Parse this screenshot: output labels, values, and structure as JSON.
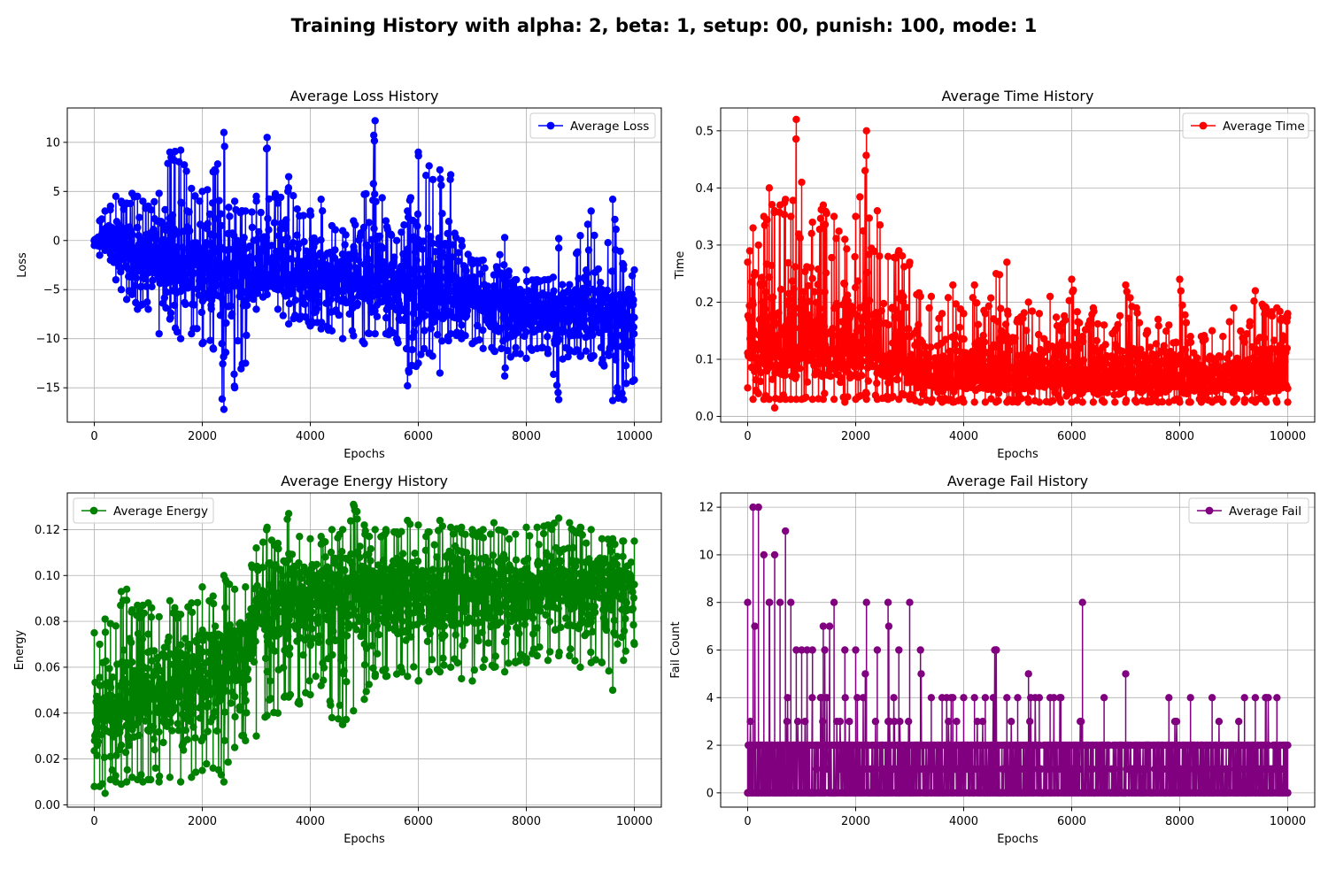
{
  "figure_title": "Training History with alpha: 2, beta: 1, setup: 00, punish: 100, mode: 1",
  "chart_data": [
    {
      "type": "line",
      "title": "Average Loss History",
      "xlabel": "Epochs",
      "ylabel": "Loss",
      "legend": "top-right",
      "grid": true,
      "markers": true,
      "xlim": [
        -500,
        10500
      ],
      "ylim": [
        -18.5,
        13.5
      ],
      "xticks": [
        0,
        2000,
        4000,
        6000,
        8000,
        10000
      ],
      "yticks": [
        -15,
        -10,
        -5,
        0,
        5,
        10
      ],
      "yticks_labels": [
        "−15",
        "−10",
        "−5",
        "0",
        "5",
        "10"
      ],
      "series": [
        {
          "name": "Average Loss",
          "color": "#0000ff",
          "x": [
            0,
            100,
            200,
            300,
            400,
            500,
            600,
            700,
            800,
            900,
            1000,
            1200,
            1400,
            1600,
            1800,
            2000,
            2200,
            2400,
            2600,
            2800,
            3000,
            3200,
            3400,
            3600,
            3800,
            4000,
            4200,
            4400,
            4600,
            4800,
            5000,
            5200,
            5400,
            5600,
            5800,
            6000,
            6200,
            6400,
            6600,
            6800,
            7000,
            7200,
            7400,
            7600,
            7800,
            8000,
            8200,
            8400,
            8600,
            8800,
            9000,
            9200,
            9400,
            9600,
            9800,
            10000
          ],
          "upper": [
            0,
            2,
            3,
            3.5,
            4.5,
            4,
            3.8,
            4.8,
            4.5,
            4,
            3.5,
            4.8,
            9,
            9.2,
            5.3,
            5,
            7,
            11,
            4,
            3,
            4.5,
            10.5,
            3.8,
            6.5,
            2.5,
            3,
            4.2,
            1.5,
            1,
            2,
            4.7,
            12.2,
            2,
            0,
            3,
            9,
            7.6,
            7.2,
            6.7,
            0,
            -2,
            -2,
            -3.5,
            0.3,
            -4,
            -3,
            -4,
            -4,
            0.2,
            -4.5,
            0.5,
            3,
            -5,
            4.2,
            -2.5,
            -3
          ],
          "lower": [
            -0.5,
            -1.5,
            -1,
            -2,
            -4,
            -5,
            -6,
            -5.5,
            -7,
            -6.5,
            -7,
            -9.5,
            -8,
            -10,
            -9.5,
            -10.5,
            -11,
            -17.2,
            -15,
            -12.5,
            -7,
            -5.5,
            -7,
            -8.5,
            -8,
            -8.7,
            -9,
            -9.2,
            -10,
            -9.7,
            -10.5,
            -9.5,
            -9.5,
            -10,
            -14.8,
            -12.5,
            -11.5,
            -13.5,
            -9.5,
            -10,
            -10.5,
            -11,
            -11.2,
            -13.8,
            -11.5,
            -12,
            -11,
            -11.5,
            -16.2,
            -11.3,
            -11.8,
            -12,
            -12.5,
            -16.3,
            -16.2,
            -14.2
          ],
          "mean": [
            0,
            0,
            0,
            -0.5,
            -0.5,
            -1,
            -1,
            -1.2,
            -1.5,
            -1.5,
            -1.6,
            -2,
            -2.2,
            -2.3,
            -2.5,
            -2.6,
            -2.8,
            -3,
            -3,
            -3.2,
            -3.3,
            -3.4,
            -3.5,
            -3.6,
            -3.7,
            -3.8,
            -3.9,
            -4,
            -4.1,
            -4.2,
            -4.3,
            -4.5,
            -4.6,
            -4.8,
            -5,
            -5.1,
            -5.3,
            -5.5,
            -5.6,
            -5.8,
            -6,
            -6.1,
            -6.3,
            -6.5,
            -6.6,
            -6.8,
            -6.9,
            -7,
            -7.1,
            -7.2,
            -7.3,
            -7.4,
            -7.5,
            -7.6,
            -7.8,
            -8
          ]
        }
      ]
    },
    {
      "type": "line",
      "title": "Average Time History",
      "xlabel": "Epochs",
      "ylabel": "Time",
      "legend": "top-right",
      "grid": true,
      "markers": true,
      "xlim": [
        -500,
        10500
      ],
      "ylim": [
        -0.01,
        0.54
      ],
      "xticks": [
        0,
        2000,
        4000,
        6000,
        8000,
        10000
      ],
      "yticks": [
        0.0,
        0.1,
        0.2,
        0.3,
        0.4,
        0.5
      ],
      "yticks_labels": [
        "0.0",
        "0.1",
        "0.2",
        "0.3",
        "0.4",
        "0.5"
      ],
      "series": [
        {
          "name": "Average Time",
          "color": "#ff0000",
          "x": [
            0,
            100,
            200,
            300,
            400,
            500,
            600,
            700,
            800,
            900,
            1000,
            1200,
            1400,
            1600,
            1800,
            2000,
            2200,
            2400,
            2600,
            2800,
            3000,
            3200,
            3400,
            3600,
            3800,
            4000,
            4200,
            4400,
            4600,
            4800,
            5000,
            5200,
            5400,
            5600,
            5800,
            6000,
            6200,
            6400,
            6600,
            6800,
            7000,
            7200,
            7400,
            7600,
            7800,
            8000,
            8200,
            8400,
            8600,
            8800,
            9000,
            9200,
            9400,
            9600,
            9800,
            10000
          ],
          "upper": [
            0.27,
            0.33,
            0.3,
            0.35,
            0.4,
            0.36,
            0.37,
            0.38,
            0.35,
            0.52,
            0.41,
            0.34,
            0.37,
            0.35,
            0.31,
            0.35,
            0.5,
            0.36,
            0.28,
            0.29,
            0.27,
            0.21,
            0.21,
            0.18,
            0.23,
            0.18,
            0.23,
            0.18,
            0.25,
            0.27,
            0.17,
            0.2,
            0.18,
            0.21,
            0.15,
            0.24,
            0.14,
            0.19,
            0.16,
            0.15,
            0.23,
            0.19,
            0.15,
            0.17,
            0.16,
            0.24,
            0.14,
            0.14,
            0.15,
            0.14,
            0.19,
            0.13,
            0.22,
            0.19,
            0.19,
            0.18
          ],
          "lower": [
            0.05,
            0.03,
            0.04,
            0.03,
            0.03,
            0.015,
            0.03,
            0.03,
            0.03,
            0.03,
            0.03,
            0.03,
            0.03,
            0.03,
            0.025,
            0.03,
            0.03,
            0.03,
            0.03,
            0.03,
            0.03,
            0.025,
            0.025,
            0.025,
            0.025,
            0.025,
            0.025,
            0.025,
            0.025,
            0.025,
            0.025,
            0.025,
            0.025,
            0.025,
            0.025,
            0.025,
            0.025,
            0.025,
            0.025,
            0.025,
            0.025,
            0.025,
            0.025,
            0.025,
            0.025,
            0.025,
            0.025,
            0.025,
            0.025,
            0.025,
            0.025,
            0.025,
            0.025,
            0.025,
            0.025,
            0.025
          ],
          "mean": [
            0.12,
            0.13,
            0.13,
            0.12,
            0.12,
            0.12,
            0.12,
            0.12,
            0.12,
            0.12,
            0.12,
            0.12,
            0.12,
            0.12,
            0.12,
            0.12,
            0.12,
            0.11,
            0.11,
            0.11,
            0.1,
            0.07,
            0.07,
            0.07,
            0.07,
            0.07,
            0.07,
            0.07,
            0.07,
            0.07,
            0.07,
            0.07,
            0.07,
            0.065,
            0.065,
            0.065,
            0.065,
            0.065,
            0.065,
            0.065,
            0.065,
            0.065,
            0.065,
            0.065,
            0.065,
            0.065,
            0.065,
            0.065,
            0.065,
            0.065,
            0.065,
            0.065,
            0.065,
            0.065,
            0.065,
            0.065
          ]
        }
      ]
    },
    {
      "type": "line",
      "title": "Average Energy History",
      "xlabel": "Epochs",
      "ylabel": "Energy",
      "legend": "top-left",
      "grid": true,
      "markers": true,
      "xlim": [
        -500,
        10500
      ],
      "ylim": [
        -0.001,
        0.136
      ],
      "xticks": [
        0,
        2000,
        4000,
        6000,
        8000,
        10000
      ],
      "yticks": [
        0.0,
        0.02,
        0.04,
        0.06,
        0.08,
        0.1,
        0.12
      ],
      "yticks_labels": [
        "0.00",
        "0.02",
        "0.04",
        "0.06",
        "0.08",
        "0.10",
        "0.12"
      ],
      "series": [
        {
          "name": "Average Energy",
          "color": "#008000",
          "x": [
            0,
            100,
            200,
            300,
            400,
            500,
            600,
            700,
            800,
            900,
            1000,
            1200,
            1400,
            1600,
            1800,
            2000,
            2200,
            2400,
            2600,
            2800,
            3000,
            3200,
            3400,
            3600,
            3800,
            4000,
            4200,
            4400,
            4600,
            4800,
            5000,
            5200,
            5400,
            5600,
            5800,
            6000,
            6200,
            6400,
            6600,
            6800,
            7000,
            7200,
            7400,
            7600,
            7800,
            8000,
            8200,
            8400,
            8600,
            8800,
            9000,
            9200,
            9400,
            9600,
            9800,
            10000
          ],
          "upper": [
            0.075,
            0.07,
            0.081,
            0.079,
            0.078,
            0.093,
            0.094,
            0.085,
            0.087,
            0.087,
            0.088,
            0.082,
            0.089,
            0.083,
            0.088,
            0.095,
            0.091,
            0.1,
            0.094,
            0.095,
            0.112,
            0.121,
            0.114,
            0.127,
            0.117,
            0.116,
            0.117,
            0.12,
            0.12,
            0.131,
            0.122,
            0.12,
            0.12,
            0.119,
            0.124,
            0.122,
            0.119,
            0.124,
            0.121,
            0.121,
            0.12,
            0.12,
            0.123,
            0.119,
            0.118,
            0.121,
            0.121,
            0.122,
            0.125,
            0.123,
            0.121,
            0.12,
            0.116,
            0.116,
            0.115,
            0.115
          ],
          "lower": [
            0.008,
            0.008,
            0.005,
            0.011,
            0.01,
            0.009,
            0.01,
            0.012,
            0.011,
            0.01,
            0.011,
            0.01,
            0.012,
            0.01,
            0.012,
            0.015,
            0.016,
            0.01,
            0.025,
            0.028,
            0.03,
            0.039,
            0.04,
            0.047,
            0.044,
            0.048,
            0.052,
            0.038,
            0.035,
            0.041,
            0.046,
            0.056,
            0.056,
            0.057,
            0.056,
            0.054,
            0.058,
            0.058,
            0.06,
            0.055,
            0.054,
            0.06,
            0.06,
            0.058,
            0.062,
            0.062,
            0.065,
            0.063,
            0.065,
            0.065,
            0.06,
            0.062,
            0.062,
            0.05,
            0.063,
            0.07
          ],
          "mean": [
            0.04,
            0.04,
            0.041,
            0.042,
            0.043,
            0.044,
            0.045,
            0.046,
            0.047,
            0.048,
            0.049,
            0.05,
            0.052,
            0.054,
            0.056,
            0.058,
            0.06,
            0.062,
            0.064,
            0.066,
            0.085,
            0.088,
            0.089,
            0.09,
            0.09,
            0.091,
            0.091,
            0.092,
            0.092,
            0.092,
            0.093,
            0.093,
            0.093,
            0.094,
            0.094,
            0.094,
            0.094,
            0.094,
            0.095,
            0.095,
            0.095,
            0.095,
            0.095,
            0.095,
            0.095,
            0.096,
            0.096,
            0.096,
            0.096,
            0.096,
            0.096,
            0.096,
            0.096,
            0.096,
            0.096,
            0.096
          ]
        }
      ]
    },
    {
      "type": "line",
      "title": "Average Fail History",
      "xlabel": "Epochs",
      "ylabel": "Fail Count",
      "legend": "top-right",
      "grid": true,
      "markers": true,
      "xlim": [
        -500,
        10500
      ],
      "ylim": [
        -0.6,
        12.6
      ],
      "xticks": [
        0,
        2000,
        4000,
        6000,
        8000,
        10000
      ],
      "yticks": [
        0,
        2,
        4,
        6,
        8,
        10,
        12
      ],
      "yticks_labels": [
        "0",
        "2",
        "4",
        "6",
        "8",
        "10",
        "12"
      ],
      "series": [
        {
          "name": "Average Fail",
          "color": "#800080",
          "x": [
            0,
            100,
            200,
            300,
            400,
            500,
            600,
            700,
            800,
            900,
            1000,
            1200,
            1400,
            1600,
            1800,
            2000,
            2200,
            2400,
            2600,
            2800,
            3000,
            3200,
            3400,
            3600,
            3800,
            4000,
            4200,
            4400,
            4600,
            4800,
            5000,
            5200,
            5400,
            5600,
            5800,
            6000,
            6200,
            6400,
            6600,
            6800,
            7000,
            7200,
            7400,
            7600,
            7800,
            8000,
            8200,
            8400,
            8600,
            8800,
            9000,
            9200,
            9400,
            9600,
            9800,
            10000
          ],
          "upper": [
            8,
            12,
            12,
            10,
            8,
            10,
            8,
            11,
            8,
            6,
            6,
            6,
            7,
            8,
            6,
            6,
            8,
            6,
            8,
            6,
            8,
            6,
            4,
            4,
            4,
            4,
            4,
            4,
            6,
            4,
            4,
            5,
            4,
            4,
            4,
            2,
            8,
            2,
            4,
            2,
            5,
            2,
            2,
            2,
            4,
            2,
            4,
            2,
            4,
            2,
            2,
            4,
            4,
            4,
            4,
            2
          ],
          "lower": [
            0,
            0,
            0,
            0,
            0,
            0,
            0,
            0,
            0,
            0,
            0,
            0,
            0,
            0,
            0,
            0,
            0,
            0,
            0,
            0,
            0,
            0,
            0,
            0,
            0,
            0,
            0,
            0,
            0,
            0,
            0,
            0,
            0,
            0,
            0,
            0,
            0,
            0,
            0,
            0,
            0,
            0,
            0,
            0,
            0,
            0,
            0,
            0,
            0,
            0,
            0,
            0,
            0,
            0,
            0,
            0
          ],
          "mean": [
            2,
            3,
            3,
            2.5,
            2.5,
            2.5,
            2,
            2,
            2,
            2,
            2,
            2,
            2,
            2,
            2,
            1.5,
            1.5,
            1.5,
            1.5,
            1.5,
            1,
            1,
            1,
            1,
            1,
            1,
            1,
            1,
            1,
            1,
            1,
            1,
            1,
            1,
            1,
            1,
            1,
            1,
            1,
            1,
            1,
            1,
            1,
            1,
            1,
            1,
            1,
            1,
            1,
            1,
            1,
            1,
            1,
            1,
            1,
            1
          ]
        }
      ]
    }
  ]
}
